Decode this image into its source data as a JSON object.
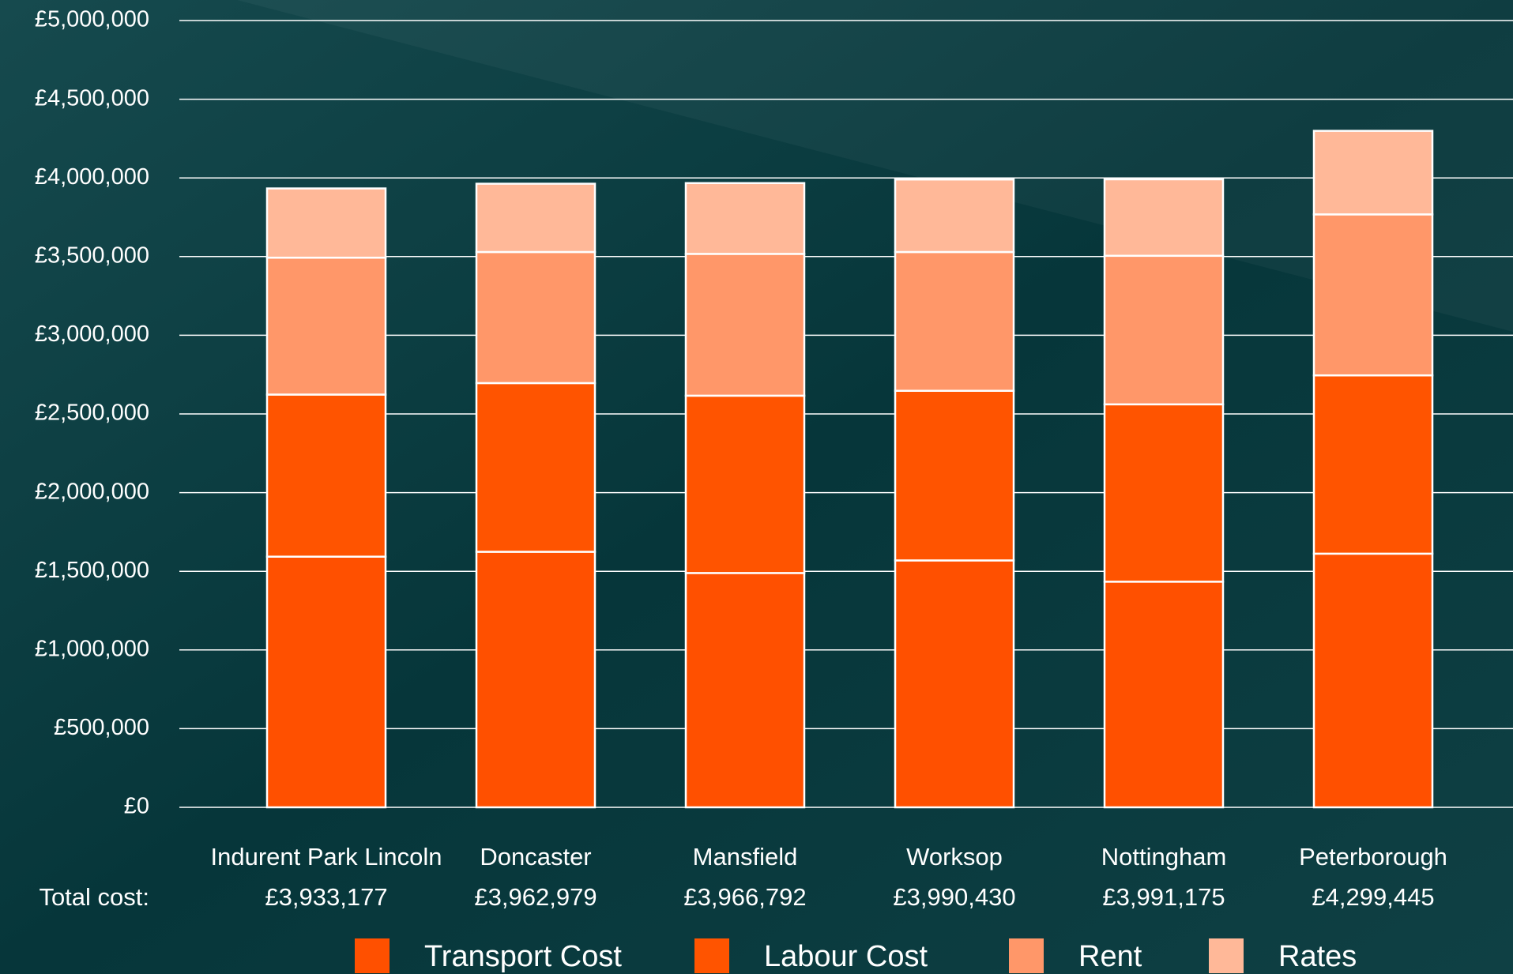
{
  "chart_data": {
    "type": "stacked-bar",
    "categories": [
      "Indurent Park Lincoln",
      "Doncaster",
      "Mansfield",
      "Worksop",
      "Nottingham",
      "Peterborough"
    ],
    "total_caption": "Total cost:",
    "total_labels": [
      "£3,933,177",
      "£3,962,979",
      "£3,966,792",
      "£3,990,430",
      "£3,991,175",
      "£4,299,445"
    ],
    "series": [
      {
        "name": "Transport Cost",
        "color": "#ff5000",
        "values": [
          1593000,
          1624000,
          1489000,
          1569000,
          1434000,
          1612000
        ]
      },
      {
        "name": "Labour Cost",
        "color": "#ff5400",
        "values": [
          1030000,
          1072000,
          1127000,
          1078000,
          1127000,
          1133000
        ]
      },
      {
        "name": "Rent",
        "color": "#ff9769",
        "values": [
          870000,
          833000,
          901000,
          882000,
          944000,
          1023000
        ]
      },
      {
        "name": "Rates",
        "color": "#ffb898",
        "values": [
          440000,
          434000,
          450000,
          461000,
          486000,
          531000
        ]
      }
    ],
    "ylim": [
      0,
      5000000
    ],
    "yticks": [
      {
        "value": 0,
        "label": "£0"
      },
      {
        "value": 500000,
        "label": "£500,000"
      },
      {
        "value": 1000000,
        "label": "£1,000,000"
      },
      {
        "value": 1500000,
        "label": "£1,500,000"
      },
      {
        "value": 2000000,
        "label": "£2,000,000"
      },
      {
        "value": 2500000,
        "label": "£2,500,000"
      },
      {
        "value": 3000000,
        "label": "£3,000,000"
      },
      {
        "value": 3500000,
        "label": "£3,500,000"
      },
      {
        "value": 4000000,
        "label": "£4,000,000"
      },
      {
        "value": 4500000,
        "label": "£4,500,000"
      },
      {
        "value": 5000000,
        "label": "£5,000,000"
      }
    ],
    "grid": true
  }
}
